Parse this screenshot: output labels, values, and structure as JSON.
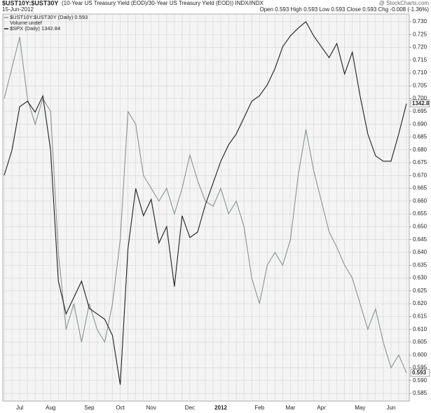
{
  "header": {
    "symbol": "$UST10Y:$UST30Y",
    "description": "(10-Year US Treasury Yield (EOD)/30-Year US Treasury Yield (EOD)) INDX/INDX",
    "brand": "@ StockCharts.com",
    "date": "15-Jun-2012",
    "quote": "Open 0.593  High 0.593  Low 0.593  Close 0.593  Chg -0.008 (-1.36%)"
  },
  "chart_data": {
    "type": "line",
    "legend_extra": "Volume undef",
    "categories": [
      null,
      null,
      "Jul",
      null,
      null,
      null,
      "Aug",
      null,
      null,
      null,
      null,
      "Sep",
      null,
      null,
      null,
      "Oct",
      null,
      null,
      null,
      "Nov",
      null,
      null,
      null,
      null,
      "Dec",
      null,
      null,
      null,
      "2012",
      null,
      null,
      null,
      null,
      "Feb",
      null,
      null,
      null,
      "Mar",
      null,
      null,
      null,
      "Apr",
      null,
      null,
      null,
      null,
      "May",
      null,
      null,
      null,
      "Jun",
      null,
      null
    ],
    "series": [
      {
        "name": "$UST10Y:$UST30Y (Daily) 0.593",
        "color": "#8a9294",
        "last_label": "0.593",
        "values": [
          0.7,
          0.712,
          0.724,
          0.7,
          0.69,
          0.7,
          0.695,
          0.64,
          0.61,
          0.62,
          0.605,
          0.62,
          0.61,
          0.605,
          0.62,
          0.645,
          0.695,
          0.69,
          0.67,
          0.665,
          0.66,
          0.665,
          0.655,
          0.665,
          0.678,
          0.668,
          0.66,
          0.658,
          0.665,
          0.655,
          0.66,
          0.65,
          0.63,
          0.62,
          0.635,
          0.64,
          0.635,
          0.645,
          0.67,
          0.688,
          0.672,
          0.66,
          0.648,
          0.642,
          0.635,
          0.63,
          0.62,
          0.61,
          0.618,
          0.605,
          0.595,
          0.6,
          0.593
        ]
      },
      {
        "name": "$SPX (Daily) 1342.84",
        "color": "#1e1e1e",
        "axis": "y2",
        "last_label": "1342.8",
        "values": [
          1277,
          1300,
          1340,
          1345,
          1335,
          1350,
          1300,
          1180,
          1150,
          1165,
          1180,
          1155,
          1150,
          1145,
          1130,
          1085,
          1210,
          1265,
          1240,
          1255,
          1215,
          1230,
          1175,
          1240,
          1220,
          1225,
          1250,
          1270,
          1290,
          1305,
          1315,
          1330,
          1345,
          1350,
          1360,
          1375,
          1395,
          1405,
          1412,
          1418,
          1405,
          1395,
          1385,
          1398,
          1370,
          1390,
          1350,
          1315,
          1295,
          1290,
          1290,
          1315,
          1342.84
        ]
      }
    ],
    "ylim": [
      0.582,
      0.733
    ],
    "yticks": [
      0.585,
      {
        "value": 0.59,
        "label": "0.590"
      },
      0.595,
      {
        "value": 0.6,
        "label": "0.600"
      },
      0.605,
      {
        "value": 0.61,
        "label": "0.610"
      },
      0.615,
      {
        "value": 0.62,
        "label": "0.620"
      },
      0.625,
      {
        "value": 0.63,
        "label": "0.630"
      },
      0.635,
      {
        "value": 0.64,
        "label": "0.640"
      },
      0.645,
      {
        "value": 0.65,
        "label": "0.650"
      },
      0.655,
      {
        "value": 0.66,
        "label": "0.660"
      },
      0.665,
      {
        "value": 0.67,
        "label": "0.670"
      },
      0.675,
      {
        "value": 0.68,
        "label": "0.680"
      },
      0.685,
      {
        "value": 0.69,
        "label": "0.690"
      },
      0.695,
      {
        "value": 0.7,
        "label": "0.700"
      },
      0.705,
      {
        "value": 0.71,
        "label": "0.710"
      },
      0.715,
      {
        "value": 0.72,
        "label": "0.720"
      },
      0.725,
      {
        "value": 0.73,
        "label": "0.730"
      }
    ],
    "y2lim": [
      1070,
      1425
    ],
    "grid": true
  }
}
